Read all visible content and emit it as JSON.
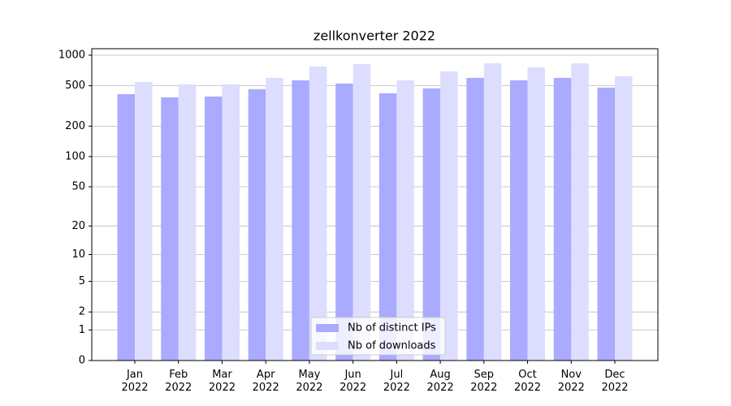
{
  "chart_data": {
    "type": "bar",
    "title": "zellkonverter 2022",
    "categories": [
      [
        "Jan",
        "2022"
      ],
      [
        "Feb",
        "2022"
      ],
      [
        "Mar",
        "2022"
      ],
      [
        "Apr",
        "2022"
      ],
      [
        "May",
        "2022"
      ],
      [
        "Jun",
        "2022"
      ],
      [
        "Jul",
        "2022"
      ],
      [
        "Aug",
        "2022"
      ],
      [
        "Sep",
        "2022"
      ],
      [
        "Oct",
        "2022"
      ],
      [
        "Nov",
        "2022"
      ],
      [
        "Dec",
        "2022"
      ]
    ],
    "series": [
      {
        "name": "Nb of distinct IPs",
        "color": "#aaaaff",
        "values": [
          414,
          385,
          392,
          463,
          566,
          526,
          422,
          471,
          598,
          566,
          598,
          480
        ]
      },
      {
        "name": "Nb of downloads",
        "color": "#ddddff",
        "values": [
          545,
          517,
          517,
          598,
          774,
          818,
          566,
          693,
          833,
          760,
          833,
          621
        ]
      }
    ],
    "yscale": "log1p",
    "ylim": [
      0,
      1158
    ],
    "yticks": [
      0,
      1,
      2,
      5,
      10,
      20,
      50,
      100,
      200,
      500,
      1000
    ],
    "grid": true,
    "legend": "lower center"
  }
}
